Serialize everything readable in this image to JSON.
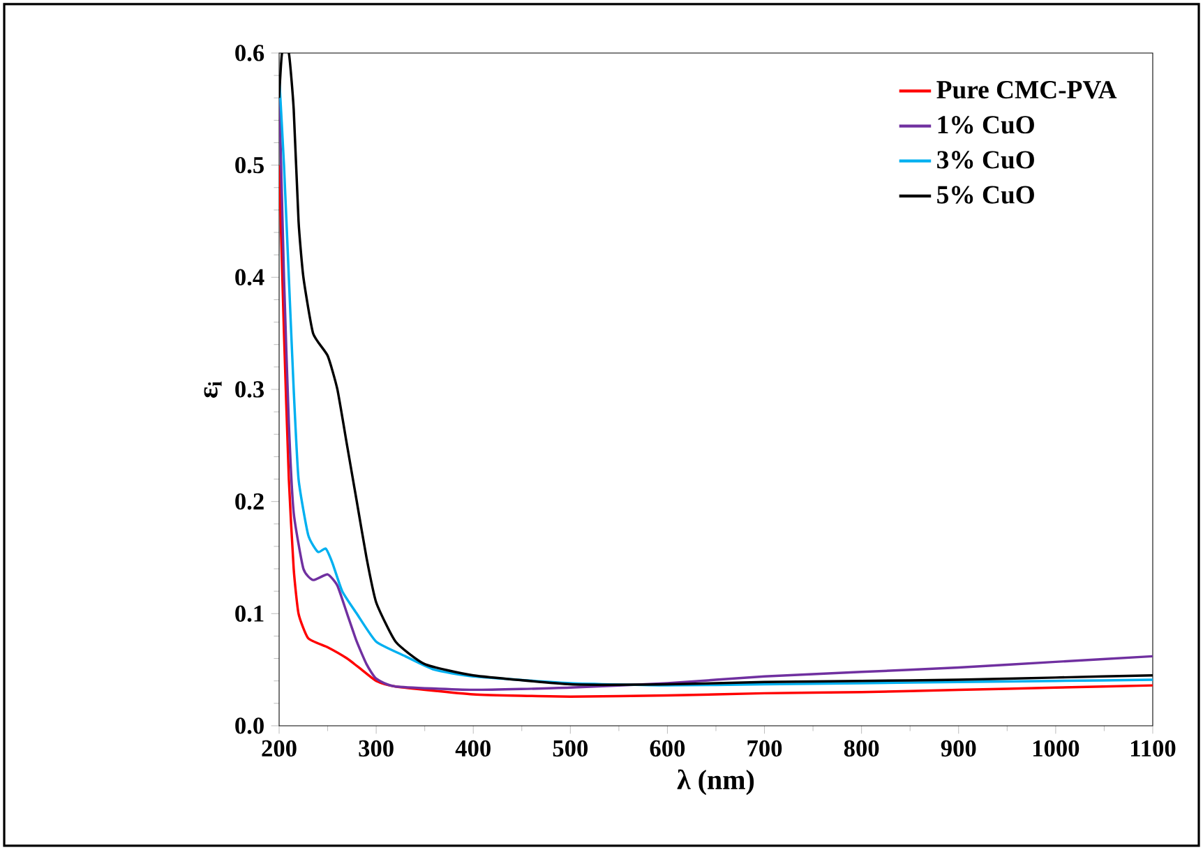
{
  "chart_data": {
    "type": "line",
    "xlabel": "λ (nm)",
    "ylabel": "ε$_{i}$",
    "xlim": [
      200,
      1100
    ],
    "xticks": [
      200,
      300,
      400,
      500,
      600,
      700,
      800,
      900,
      1000,
      1100
    ],
    "ylim": [
      0,
      0.6
    ],
    "yticks": [
      {
        "value": 0,
        "label": "0.0"
      },
      0.1,
      0.2,
      0.3,
      0.4,
      0.5,
      0.6
    ],
    "grid": false,
    "legend": "top right",
    "line_style": "solid",
    "marker": "none",
    "series": [
      {
        "name": "Pure CMC-PVA",
        "color": "#ff0000",
        "x": [
          200,
          205,
          210,
          215,
          220,
          230,
          250,
          270,
          285,
          300,
          320,
          400,
          500,
          600,
          700,
          800,
          900,
          1000,
          1100
        ],
        "values": [
          0.5,
          0.35,
          0.22,
          0.14,
          0.1,
          0.078,
          0.07,
          0.06,
          0.05,
          0.04,
          0.035,
          0.028,
          0.026,
          0.027,
          0.029,
          0.03,
          0.032,
          0.034,
          0.036
        ]
      },
      {
        "name": "1% CuO",
        "color": "#7030a0",
        "x": [
          200,
          205,
          210,
          215,
          225,
          235,
          250,
          260,
          270,
          280,
          290,
          300,
          320,
          400,
          500,
          600,
          700,
          800,
          900,
          1000,
          1100
        ],
        "values": [
          0.57,
          0.4,
          0.27,
          0.19,
          0.14,
          0.13,
          0.135,
          0.125,
          0.1,
          0.075,
          0.055,
          0.042,
          0.035,
          0.032,
          0.034,
          0.038,
          0.044,
          0.048,
          0.052,
          0.057,
          0.062
        ]
      },
      {
        "name": "3% CuO",
        "color": "#00b0f0",
        "x": [
          200,
          205,
          210,
          215,
          220,
          230,
          240,
          248,
          255,
          265,
          280,
          300,
          330,
          360,
          400,
          500,
          600,
          700,
          800,
          900,
          1000,
          1100
        ],
        "values": [
          0.58,
          0.5,
          0.4,
          0.3,
          0.22,
          0.17,
          0.155,
          0.158,
          0.145,
          0.12,
          0.1,
          0.075,
          0.062,
          0.05,
          0.044,
          0.038,
          0.036,
          0.037,
          0.038,
          0.039,
          0.04,
          0.041
        ]
      },
      {
        "name": "5% CuO",
        "color": "#000000",
        "x": [
          200,
          203,
          210,
          215,
          220,
          225,
          235,
          250,
          260,
          270,
          280,
          290,
          300,
          320,
          350,
          400,
          500,
          600,
          700,
          800,
          900,
          1000,
          1100
        ],
        "values": [
          0.56,
          0.6,
          0.6,
          0.55,
          0.45,
          0.4,
          0.35,
          0.33,
          0.3,
          0.25,
          0.2,
          0.15,
          0.11,
          0.075,
          0.055,
          0.045,
          0.037,
          0.037,
          0.039,
          0.04,
          0.041,
          0.043,
          0.045
        ]
      }
    ]
  }
}
